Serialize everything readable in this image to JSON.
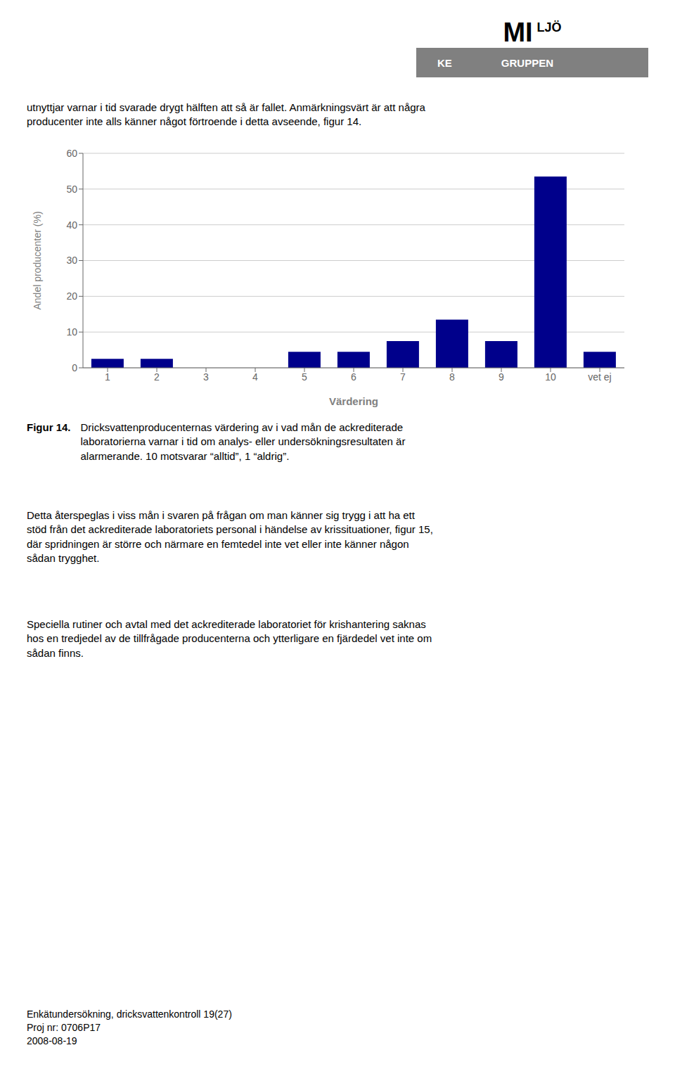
{
  "chart_data": {
    "type": "bar",
    "categories": [
      "1",
      "2",
      "3",
      "4",
      "5",
      "6",
      "7",
      "8",
      "9",
      "10",
      "vet ej"
    ],
    "values": [
      2.5,
      2.5,
      0,
      0,
      4.5,
      4.5,
      7.5,
      13.5,
      7.5,
      53.5,
      4.5
    ],
    "color": "#00008B",
    "ylabel": "Andel producenter (%)",
    "xlabel": "Värdering",
    "ylim": [
      0,
      60
    ],
    "yticks": [
      0,
      10,
      20,
      30,
      40,
      50,
      60
    ],
    "grid": true,
    "annotations": [
      "MI",
      "LJÖ",
      "KE",
      "GRUPPEN",
      "utnyttjar varnar i tid svarade drygt hälften att så är fallet. Anmärkningsvärt är att några",
      "producenter inte alls känner något förtroende i detta avseende, figur 14.",
      "Figur 14.",
      "Dricksvattenproducenternas värdering av i vad mån de ackrediterade\nlaboratorierna varnar i tid om analys- eller undersökningsresultaten är\nalarmerande. 10 motsvarar “alltid”, 1 “aldrig”.",
      "Detta återspeglas i viss mån i svaren på frågan om man känner sig trygg i att ha ett\nstöd från det ackrediterade laboratoriets personal i händelse av krissituationer, figur 15,\ndär spridningen är större och närmare en femtedel inte vet eller inte känner någon\nsådan trygghet.",
      "Speciella rutiner och avtal med det ackrediterade laboratoriet för krishantering saknas\nhos en tredjedel av de tillfrågade producenterna och ytterligare en fjärdedel vet inte om\nsådan finns.",
      "Enkätundersökning, dricksvattenkontroll    19(27)",
      "Proj nr: 0706P17",
      "2008-08-19"
    ]
  }
}
